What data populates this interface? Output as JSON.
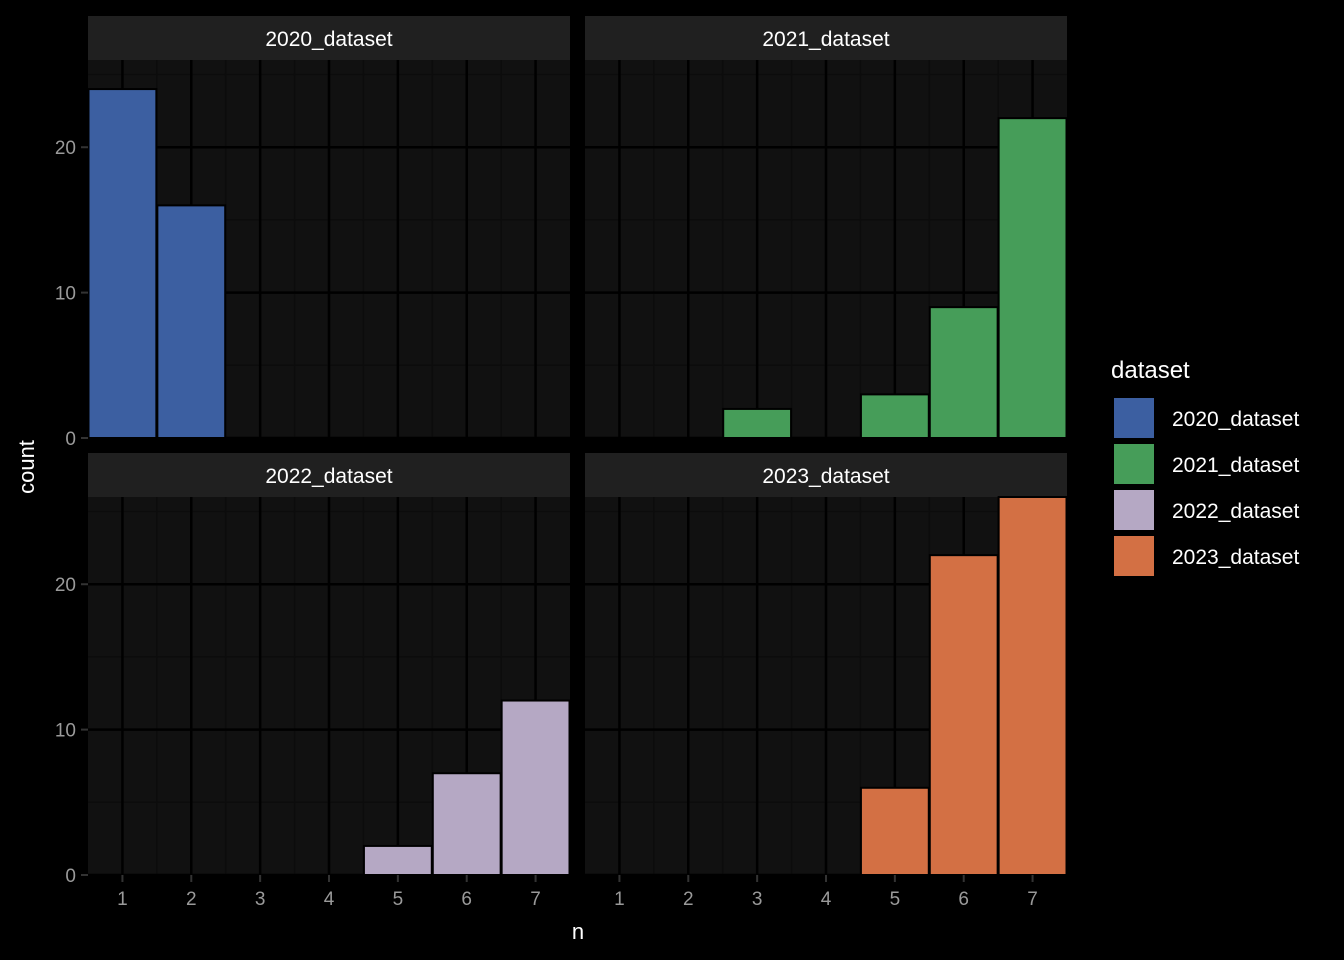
{
  "chart_data": {
    "type": "bar",
    "facets": [
      "2020_dataset",
      "2021_dataset",
      "2022_dataset",
      "2023_dataset"
    ],
    "categories": [
      1,
      2,
      3,
      4,
      5,
      6,
      7
    ],
    "x_ticks": [
      "1",
      "2",
      "3",
      "4",
      "5",
      "6",
      "7"
    ],
    "y_ticks": [
      "0",
      "10",
      "20"
    ],
    "xlabel": "n",
    "ylabel": "count",
    "xlim": [
      0.5,
      7.5
    ],
    "ylim": [
      0,
      26
    ],
    "grid": true,
    "legend_position": "right",
    "legend": {
      "title": "dataset",
      "items": [
        "2020_dataset",
        "2021_dataset",
        "2022_dataset",
        "2023_dataset"
      ]
    },
    "series": [
      {
        "name": "2020_dataset",
        "color": "#3c5fa1",
        "values": [
          24,
          16,
          0,
          0,
          0,
          0,
          0
        ]
      },
      {
        "name": "2021_dataset",
        "color": "#469d59",
        "values": [
          0,
          0,
          2,
          0,
          3,
          9,
          22
        ]
      },
      {
        "name": "2022_dataset",
        "color": "#b5a8c4",
        "values": [
          0,
          0,
          0,
          0,
          2,
          7,
          12
        ]
      },
      {
        "name": "2023_dataset",
        "color": "#d37044",
        "values": [
          0,
          0,
          0,
          0,
          6,
          22,
          26
        ]
      }
    ],
    "colors": {
      "background": "#000000",
      "panel": "#111111",
      "strip": "#202020",
      "grid_major": "#000000",
      "grid_minor": "#0c0c0c",
      "axis_text": "#9a9a9a",
      "title_text": "#ffffff"
    }
  }
}
